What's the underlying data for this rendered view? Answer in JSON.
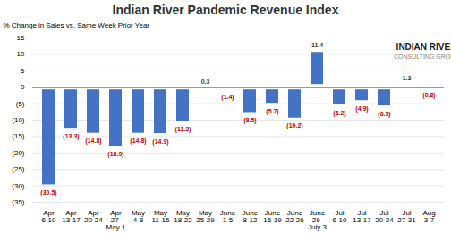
{
  "chart_data": {
    "type": "bar",
    "title": "Indian River Pandemic Revenue Index",
    "ylabel": "% Change in Sales vs. Same Week Prior Year",
    "categories": [
      "Apr\n6-10",
      "Apr\n13-17",
      "Apr\n20-24",
      "Apr\n27-\nMay 1",
      "May\n4-8",
      "May\n11-15",
      "May\n18-22",
      "May\n25-29",
      "June\n1-5",
      "June\n8-12",
      "June\n15-19",
      "June\n22-26",
      "June\n29-\nJuly 3",
      "Jul\n6-10",
      "Jul\n13-17",
      "Jul\n20-24",
      "Jul\n27-31",
      "Aug\n3-7"
    ],
    "values": [
      -30.5,
      -13.3,
      -14.8,
      -18.9,
      -14.8,
      -14.9,
      -11.3,
      0.3,
      -1.4,
      -8.5,
      -5.7,
      -10.2,
      11.4,
      -6.2,
      -4.9,
      -6.5,
      1.3,
      -0.8
    ],
    "value_labels": [
      "(30.5)",
      "(13.3)",
      "(14.8)",
      "(18.9)",
      "(14.8)",
      "(14.9)",
      "(11.3)",
      "0.3",
      "(1.4)",
      "(8.5)",
      "(5.7)",
      "(10.2)",
      "11.4",
      "(6.2)",
      "(4.9)",
      "(6.5)",
      "1.3",
      "(0.8)"
    ],
    "data_labels": true,
    "color": "#4472C4",
    "ylim": [
      -35,
      15
    ],
    "yticks": [
      15,
      10,
      5,
      0,
      {
        "value": -5,
        "label": "(5)"
      },
      {
        "value": -10,
        "label": "(10)"
      },
      {
        "value": -15,
        "label": "(15)"
      },
      {
        "value": -20,
        "label": "(20)"
      },
      {
        "value": -25,
        "label": "(25)"
      },
      {
        "value": -30,
        "label": "(30)"
      },
      {
        "value": -35,
        "label": "(35)"
      }
    ],
    "grid": true,
    "annotations": [
      "INDIAN RIVER",
      "CONSULTING GROUP"
    ]
  }
}
